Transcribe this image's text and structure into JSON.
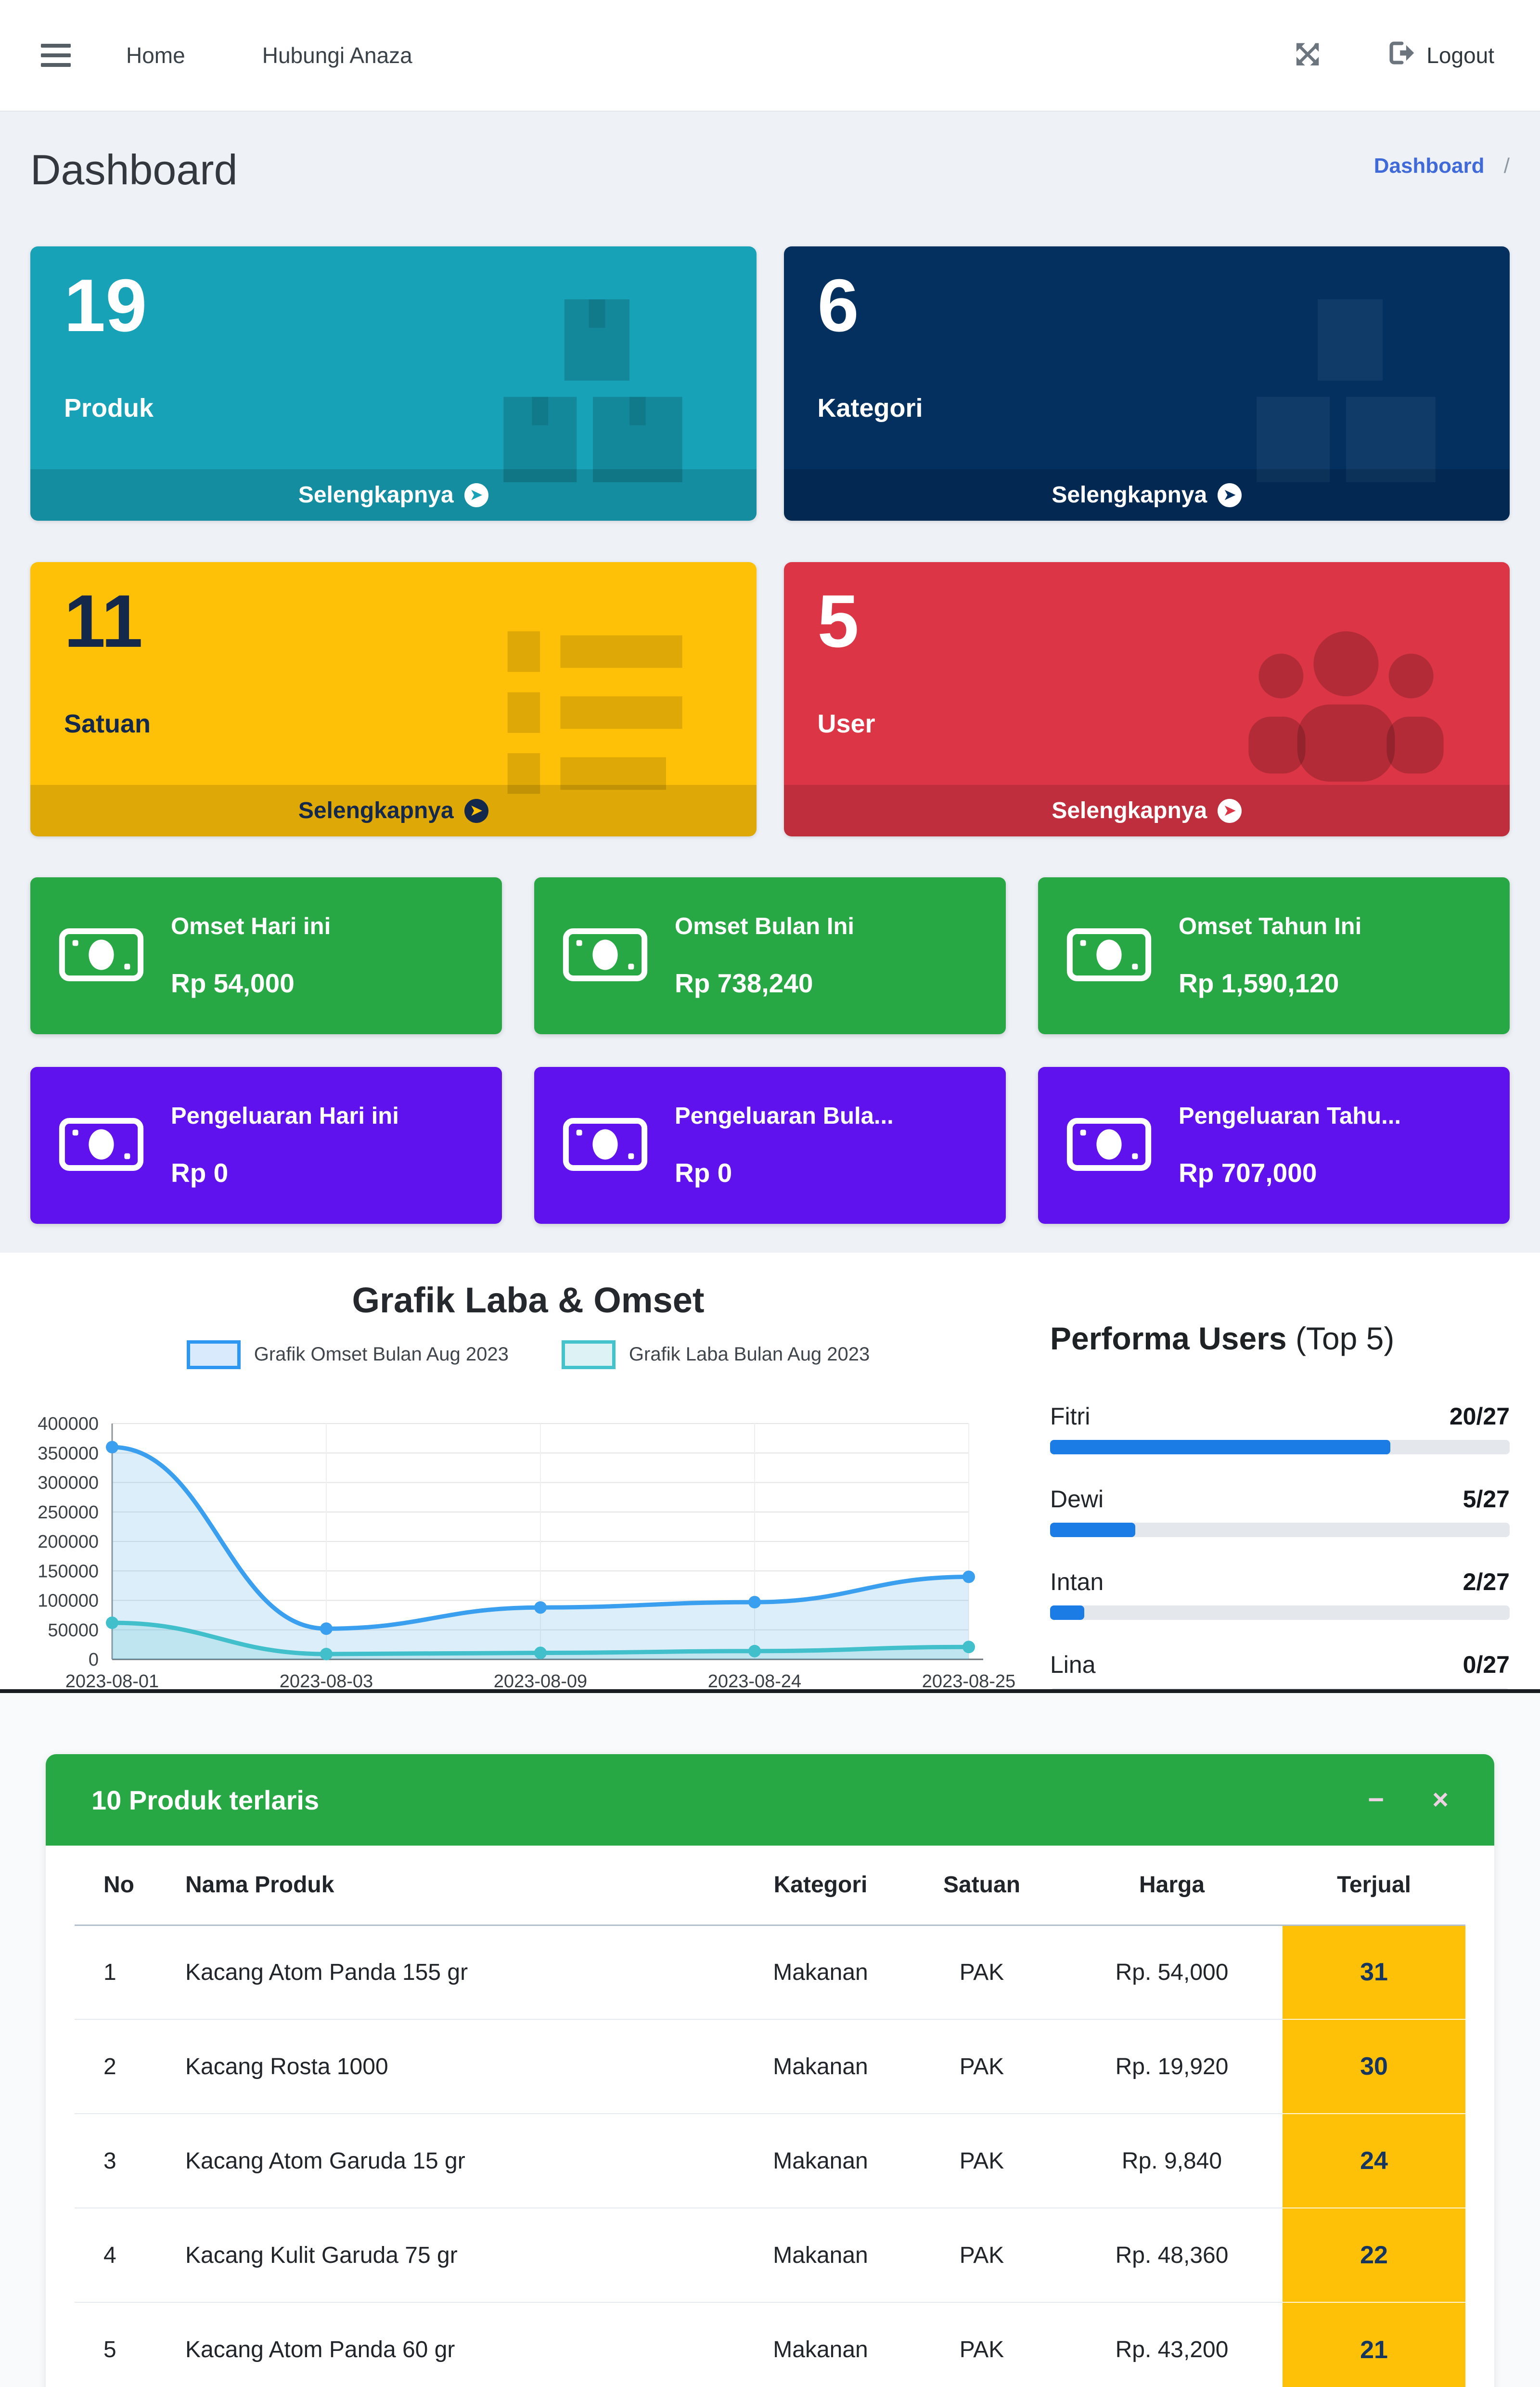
{
  "navbar": {
    "links": [
      "Home",
      "Hubungi Anaza"
    ],
    "logout_label": "Logout",
    "icons": [
      "hamburger-icon",
      "fullscreen-icon",
      "sign-out-icon"
    ]
  },
  "header": {
    "title": "Dashboard",
    "breadcrumb": {
      "link": "Dashboard",
      "separator": "/"
    }
  },
  "small_boxes": [
    {
      "value": "19",
      "label": "Produk",
      "more": "Selengkapnya",
      "color": "#17a2b8",
      "icon": "boxes-icon"
    },
    {
      "value": "6",
      "label": "Kategori",
      "more": "Selengkapnya",
      "color": "#04305f",
      "icon": "tags-icon"
    },
    {
      "value": "11",
      "label": "Satuan",
      "more": "Selengkapnya",
      "color": "#ffc107",
      "icon": "list-icon"
    },
    {
      "value": "5",
      "label": "User",
      "more": "Selengkapnya",
      "color": "#dc3545",
      "icon": "users-icon"
    }
  ],
  "stat_cards": [
    {
      "title": "Omset Hari ini",
      "value": "Rp 54,000",
      "color": "#28a745",
      "icon": "money-bill-icon"
    },
    {
      "title": "Omset Bulan Ini",
      "value": "Rp 738,240",
      "color": "#28a745",
      "icon": "money-bill-icon"
    },
    {
      "title": "Omset Tahun Ini",
      "value": "Rp 1,590,120",
      "color": "#28a745",
      "icon": "money-bill-icon"
    },
    {
      "title": "Pengeluaran Hari ini",
      "value": "Rp 0",
      "color": "#5f11ee",
      "icon": "money-bill-icon"
    },
    {
      "title": "Pengeluaran Bula...",
      "value": "Rp 0",
      "color": "#5f11ee",
      "icon": "money-bill-icon"
    },
    {
      "title": "Pengeluaran Tahu...",
      "value": "Rp 707,000",
      "color": "#5f11ee",
      "icon": "money-bill-icon"
    }
  ],
  "chart_data": {
    "type": "line",
    "title": "Grafik Laba & Omset",
    "x": [
      "2023-08-01",
      "2023-08-03",
      "2023-08-09",
      "2023-08-24",
      "2023-08-25"
    ],
    "series": [
      {
        "name": "Grafik Omset Bulan Aug 2023",
        "color": "#3b9ff0",
        "fill": "rgba(66,159,235,0.18)",
        "values": [
          360000,
          52000,
          88000,
          97000,
          140000
        ]
      },
      {
        "name": "Grafik Laba Bulan Aug 2023",
        "color": "#41bfca",
        "fill": "rgba(77,195,205,0.20)",
        "values": [
          62000,
          9000,
          11000,
          14000,
          21000
        ]
      }
    ],
    "ylim": [
      0,
      400000
    ],
    "ytick": 50000,
    "grid": true,
    "legend_position": "top"
  },
  "performa": {
    "title": "Performa Users",
    "subtitle": "(Top 5)",
    "total": 27,
    "bar_color": "#1b7ce6",
    "users": [
      {
        "name": "Fitri",
        "value": 20
      },
      {
        "name": "Dewi",
        "value": 5
      },
      {
        "name": "Intan",
        "value": 2
      },
      {
        "name": "Lina",
        "value": 0
      }
    ]
  },
  "table": {
    "title": "10 Produk terlaris",
    "window_controls": {
      "minimize": "−",
      "close": "×"
    },
    "columns": [
      "No",
      "Nama Produk",
      "Kategori",
      "Satuan",
      "Harga",
      "Terjual"
    ],
    "terjual_color": "#ffc107",
    "header_color": "#28a745",
    "rows": [
      {
        "no": "1",
        "nama": "Kacang Atom Panda 155 gr",
        "kategori": "Makanan",
        "satuan": "PAK",
        "harga": "Rp. 54,000",
        "terjual": "31"
      },
      {
        "no": "2",
        "nama": "Kacang Rosta 1000",
        "kategori": "Makanan",
        "satuan": "PAK",
        "harga": "Rp. 19,920",
        "terjual": "30"
      },
      {
        "no": "3",
        "nama": "Kacang Atom Garuda 15 gr",
        "kategori": "Makanan",
        "satuan": "PAK",
        "harga": "Rp. 9,840",
        "terjual": "24"
      },
      {
        "no": "4",
        "nama": "Kacang Kulit Garuda 75 gr",
        "kategori": "Makanan",
        "satuan": "PAK",
        "harga": "Rp. 48,360",
        "terjual": "22"
      },
      {
        "no": "5",
        "nama": "Kacang Atom Panda 60 gr",
        "kategori": "Makanan",
        "satuan": "PAK",
        "harga": "Rp. 43,200",
        "terjual": "21"
      }
    ]
  }
}
